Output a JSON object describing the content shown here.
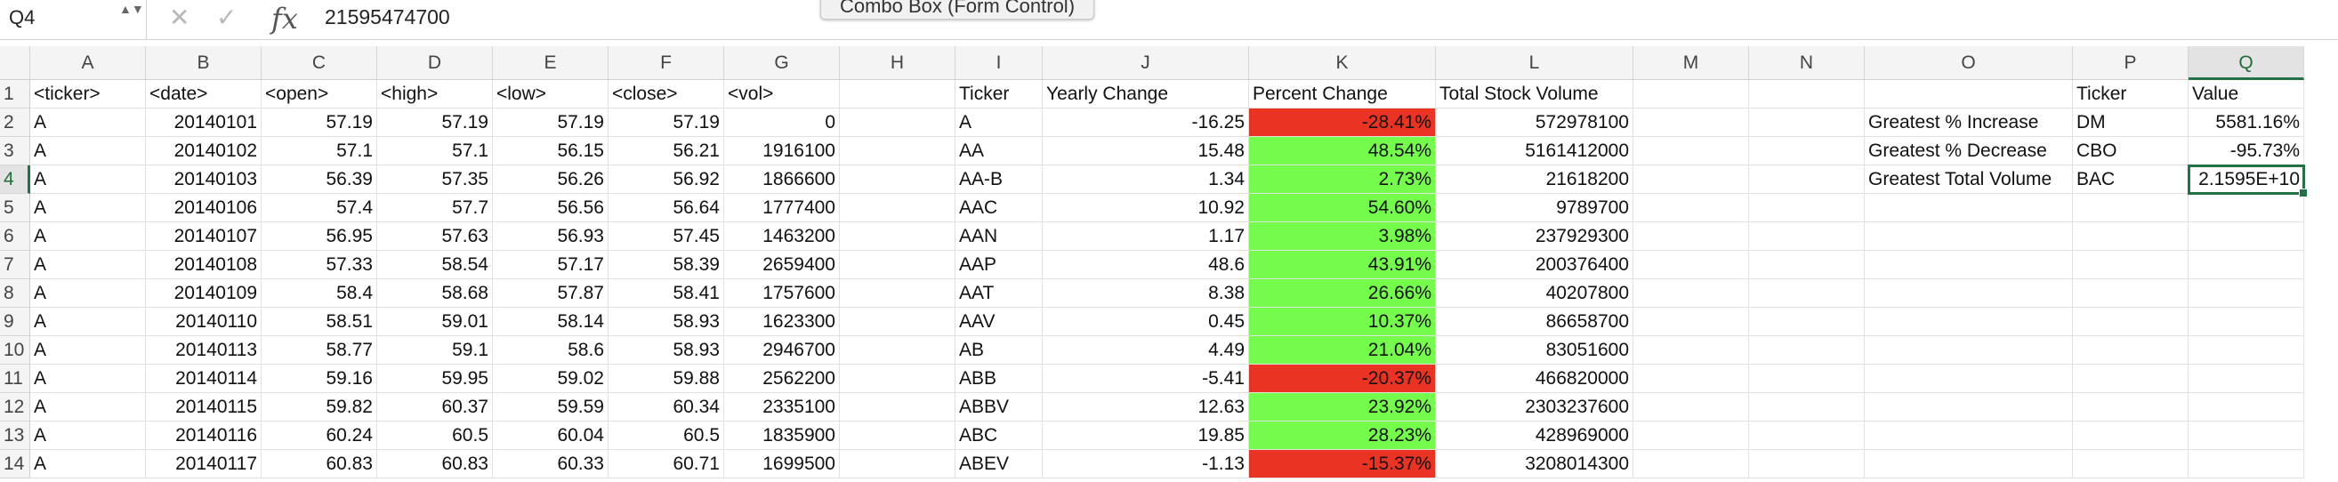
{
  "formula_bar": {
    "name_box": "Q4",
    "name_box_arrows": "▲▼",
    "cancel_icon": "✕",
    "confirm_icon": "✓",
    "fx_label": "fx",
    "formula_value": "21595474700",
    "tooltip": "Combo Box (Form Control)"
  },
  "selected_cell": "Q4",
  "colors": {
    "negative_fill": "#ea3323",
    "positive_fill": "#75fb4c",
    "selection": "#217346"
  },
  "columns": [
    "A",
    "B",
    "C",
    "D",
    "E",
    "F",
    "G",
    "H",
    "I",
    "J",
    "K",
    "L",
    "M",
    "N",
    "O",
    "P",
    "Q"
  ],
  "rows": [
    [
      "1",
      "<ticker>",
      "<date>",
      "<open>",
      "<high>",
      "<low>",
      "<close>",
      "<vol>",
      "",
      "Ticker",
      "Yearly Change",
      "Percent Change",
      "Total Stock Volume",
      "",
      "",
      "",
      "Ticker",
      "Value"
    ],
    [
      "2",
      "A",
      "20140101",
      "57.19",
      "57.19",
      "57.19",
      "57.19",
      "0",
      "",
      "A",
      "-16.25",
      "-28.41%",
      "572978100",
      "",
      "",
      "Greatest % Increase",
      "DM",
      "5581.16%"
    ],
    [
      "3",
      "A",
      "20140102",
      "57.1",
      "57.1",
      "56.15",
      "56.21",
      "1916100",
      "",
      "AA",
      "15.48",
      "48.54%",
      "5161412000",
      "",
      "",
      "Greatest % Decrease",
      "CBO",
      "-95.73%"
    ],
    [
      "4",
      "A",
      "20140103",
      "56.39",
      "57.35",
      "56.26",
      "56.92",
      "1866600",
      "",
      "AA-B",
      "1.34",
      "2.73%",
      "21618200",
      "",
      "",
      "Greatest Total Volume",
      "BAC",
      "2.1595E+10"
    ],
    [
      "5",
      "A",
      "20140106",
      "57.4",
      "57.7",
      "56.56",
      "56.64",
      "1777400",
      "",
      "AAC",
      "10.92",
      "54.60%",
      "9789700",
      "",
      "",
      "",
      "",
      ""
    ],
    [
      "6",
      "A",
      "20140107",
      "56.95",
      "57.63",
      "56.93",
      "57.45",
      "1463200",
      "",
      "AAN",
      "1.17",
      "3.98%",
      "237929300",
      "",
      "",
      "",
      "",
      ""
    ],
    [
      "7",
      "A",
      "20140108",
      "57.33",
      "58.54",
      "57.17",
      "58.39",
      "2659400",
      "",
      "AAP",
      "48.6",
      "43.91%",
      "200376400",
      "",
      "",
      "",
      "",
      ""
    ],
    [
      "8",
      "A",
      "20140109",
      "58.4",
      "58.68",
      "57.87",
      "58.41",
      "1757600",
      "",
      "AAT",
      "8.38",
      "26.66%",
      "40207800",
      "",
      "",
      "",
      "",
      ""
    ],
    [
      "9",
      "A",
      "20140110",
      "58.51",
      "59.01",
      "58.14",
      "58.93",
      "1623300",
      "",
      "AAV",
      "0.45",
      "10.37%",
      "86658700",
      "",
      "",
      "",
      "",
      ""
    ],
    [
      "10",
      "A",
      "20140113",
      "58.77",
      "59.1",
      "58.6",
      "58.93",
      "2946700",
      "",
      "AB",
      "4.49",
      "21.04%",
      "83051600",
      "",
      "",
      "",
      "",
      ""
    ],
    [
      "11",
      "A",
      "20140114",
      "59.16",
      "59.95",
      "59.02",
      "59.88",
      "2562200",
      "",
      "ABB",
      "-5.41",
      "-20.37%",
      "466820000",
      "",
      "",
      "",
      "",
      ""
    ],
    [
      "12",
      "A",
      "20140115",
      "59.82",
      "60.37",
      "59.59",
      "60.34",
      "2335100",
      "",
      "ABBV",
      "12.63",
      "23.92%",
      "2303237600",
      "",
      "",
      "",
      "",
      ""
    ],
    [
      "13",
      "A",
      "20140116",
      "60.24",
      "60.5",
      "60.04",
      "60.5",
      "1835900",
      "",
      "ABC",
      "19.85",
      "28.23%",
      "428969000",
      "",
      "",
      "",
      "",
      ""
    ],
    [
      "14",
      "A",
      "20140117",
      "60.83",
      "60.83",
      "60.33",
      "60.71",
      "1699500",
      "",
      "ABEV",
      "-1.13",
      "-15.37%",
      "3208014300",
      "",
      "",
      "",
      "",
      ""
    ]
  ]
}
